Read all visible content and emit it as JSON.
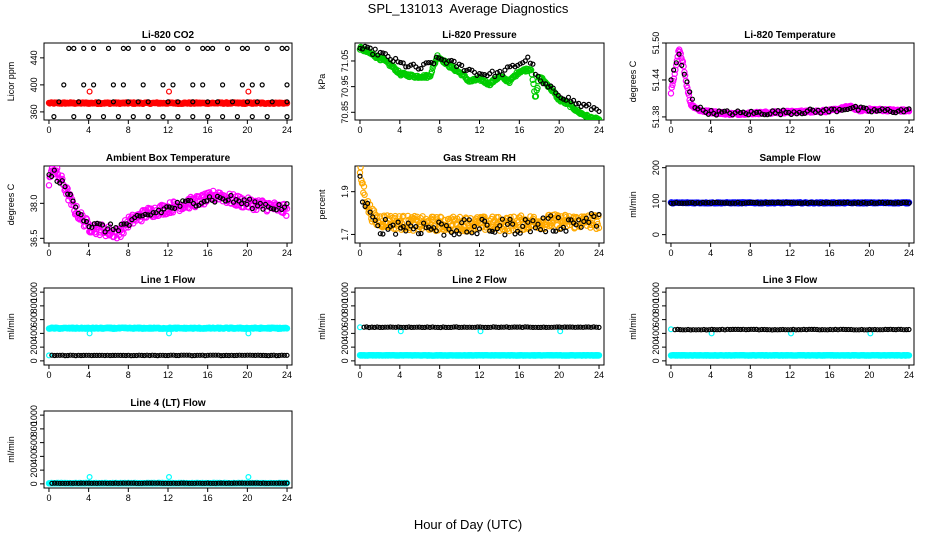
{
  "figure": {
    "title": "SPL_131013  Average Diagnostics",
    "xlabel": "Hour of Day (UTC)"
  },
  "chart_data": [
    {
      "type": "scatter",
      "title": "Li-820 CO2",
      "ylabel": "Licor ppm",
      "xlim": [
        -0.5,
        24.5
      ],
      "ylim": [
        348,
        462
      ],
      "xticks": [
        0,
        4,
        8,
        12,
        16,
        20,
        24
      ],
      "yticks": [
        360,
        400,
        440
      ],
      "ytick_labels": [
        "360",
        "400",
        "440"
      ],
      "series": [
        {
          "color": "#ff0000",
          "kind": "band",
          "x0": 0,
          "x1": 24,
          "center": 373,
          "amp": 1,
          "noise": 1,
          "n": 290,
          "size": 2.6
        },
        {
          "color": "#ff0000",
          "kind": "points",
          "x": [
            4.1,
            12.1,
            20.1
          ],
          "y": [
            390,
            390,
            390
          ],
          "size": 2.4
        },
        {
          "color": "#000000",
          "kind": "points",
          "x": [
            2,
            2.5,
            3.5,
            4.5,
            6,
            7.5,
            8,
            9.5,
            10.5,
            12,
            12.5,
            14,
            15.5,
            16,
            16.5,
            18,
            19.5,
            20,
            22,
            23.5,
            24
          ],
          "y": [
            454,
            454,
            454,
            454,
            454,
            454,
            454,
            454,
            454,
            454,
            454,
            454,
            454,
            454,
            454,
            454,
            454,
            454,
            454,
            454,
            454
          ],
          "size": 2
        },
        {
          "color": "#000000",
          "kind": "points",
          "x": [
            1.5,
            3.5,
            4.5,
            6.5,
            7.5,
            9.5,
            11.5,
            12.5,
            14.5,
            15.5,
            17.5,
            19.5,
            20.5,
            21.5,
            24
          ],
          "y": [
            400,
            400,
            400,
            400,
            400,
            400,
            400,
            400,
            400,
            400,
            400,
            400,
            400,
            400,
            400
          ],
          "size": 2
        },
        {
          "color": "#000000",
          "kind": "points",
          "x": [
            1,
            3,
            5,
            6.5,
            8,
            9,
            10,
            12,
            13,
            14.5,
            16,
            17,
            18.5,
            20,
            21,
            22.5,
            24
          ],
          "y": [
            375,
            375,
            375,
            375,
            375,
            375,
            375,
            375,
            375,
            375,
            375,
            375,
            375,
            375,
            375,
            375,
            375
          ],
          "size": 2
        },
        {
          "color": "#000000",
          "kind": "points",
          "x": [
            0.5,
            2.5,
            4,
            5.5,
            7,
            8.5,
            10,
            11.5,
            13,
            14.5,
            16,
            17.5,
            19,
            20.5,
            22,
            24
          ],
          "y": [
            353,
            353,
            353,
            353,
            353,
            353,
            353,
            353,
            353,
            353,
            353,
            353,
            353,
            353,
            353,
            353
          ],
          "size": 2
        }
      ]
    },
    {
      "type": "scatter",
      "title": "Li-820 Pressure",
      "ylabel": "kPa",
      "xlim": [
        -0.5,
        24.5
      ],
      "ylim": [
        70.82,
        71.12
      ],
      "xticks": [
        0,
        4,
        8,
        12,
        16,
        20,
        24
      ],
      "yticks": [
        70.85,
        70.95,
        71.05
      ],
      "ytick_labels": [
        "70.85",
        "70.95",
        "71.05"
      ],
      "series": [
        {
          "color": "#00cc00",
          "kind": "profile",
          "size": 2.6,
          "noise": 0.006,
          "n": 300,
          "x": [
            0,
            1.5,
            2.5,
            3.5,
            4,
            5.5,
            7,
            7.8,
            9,
            10.2,
            11,
            12,
            13,
            14,
            15,
            16,
            17.2,
            17.6,
            18,
            19,
            20,
            21,
            22,
            23,
            24
          ],
          "y": [
            71.1,
            71.07,
            71.05,
            71.02,
            71.0,
            70.99,
            70.99,
            71.07,
            71.03,
            71.0,
            70.97,
            70.98,
            70.96,
            70.99,
            70.97,
            71.01,
            71.02,
            70.9,
            70.99,
            70.95,
            70.9,
            70.88,
            70.85,
            70.83,
            70.82
          ]
        },
        {
          "color": "#000000",
          "kind": "profile",
          "size": 2,
          "noise": 0.012,
          "n": 95,
          "x": [
            0,
            2,
            4,
            6,
            8,
            10,
            12,
            14,
            16,
            17,
            18,
            20,
            22,
            24
          ],
          "y": [
            71.1,
            71.08,
            71.04,
            71.02,
            71.06,
            71.03,
            71.0,
            71.0,
            71.04,
            71.06,
            70.97,
            70.92,
            70.88,
            70.86
          ]
        }
      ]
    },
    {
      "type": "scatter",
      "title": "Li-820 Temperature",
      "ylabel": "degrees C",
      "xlim": [
        -0.5,
        24.5
      ],
      "ylim": [
        51.375,
        51.5
      ],
      "xticks": [
        0,
        4,
        8,
        12,
        16,
        20,
        24
      ],
      "yticks": [
        51.38,
        51.44,
        51.5
      ],
      "ytick_labels": [
        "51.38",
        "51.44",
        "51.50"
      ],
      "series": [
        {
          "color": "#ff00ff",
          "kind": "profile",
          "size": 2.6,
          "noise": 0.002,
          "n": 320,
          "x": [
            0,
            0.4,
            0.8,
            1.2,
            1.6,
            2,
            3,
            4,
            6,
            8,
            10,
            12,
            14,
            16,
            17,
            18,
            19,
            20,
            22,
            24
          ],
          "y": [
            51.42,
            51.45,
            51.49,
            51.47,
            51.43,
            51.4,
            51.39,
            51.388,
            51.385,
            51.386,
            51.387,
            51.388,
            51.389,
            51.39,
            51.393,
            51.397,
            51.391,
            51.392,
            51.391,
            51.39
          ]
        },
        {
          "color": "#000000",
          "kind": "profile",
          "size": 2,
          "noise": 0.004,
          "n": 90,
          "x": [
            0,
            0.8,
            1.5,
            2.5,
            4,
            8,
            12,
            16,
            18,
            20,
            24
          ],
          "y": [
            51.44,
            51.48,
            51.44,
            51.395,
            51.387,
            51.386,
            51.388,
            51.39,
            51.395,
            51.39,
            51.39
          ]
        }
      ]
    },
    {
      "type": "scatter",
      "title": "Ambient Box Temperature",
      "ylabel": "degrees C",
      "xlim": [
        -0.5,
        24.5
      ],
      "ylim": [
        36.3,
        39.6
      ],
      "xticks": [
        0,
        4,
        8,
        12,
        16,
        20,
        24
      ],
      "yticks": [
        36.5,
        38.0
      ],
      "ytick_labels": [
        "36.5",
        "38.0"
      ],
      "series": [
        {
          "color": "#ff00ff",
          "kind": "profile",
          "size": 2.6,
          "noise": 0.25,
          "n": 320,
          "x": [
            0,
            0.5,
            1.5,
            2.5,
            4,
            5,
            6,
            7,
            8,
            9,
            10,
            12,
            14,
            16,
            17,
            18,
            20,
            22,
            24
          ],
          "y": [
            39.0,
            39.5,
            38.8,
            37.8,
            37.0,
            36.9,
            36.8,
            36.7,
            37.2,
            37.4,
            37.6,
            37.8,
            38.0,
            38.2,
            38.4,
            38.2,
            38.0,
            37.9,
            37.7
          ]
        },
        {
          "color": "#000000",
          "kind": "profile",
          "size": 2,
          "noise": 0.2,
          "n": 90,
          "x": [
            0,
            0.5,
            1.5,
            4,
            6,
            8,
            10,
            12,
            14,
            16,
            18,
            20,
            22,
            24
          ],
          "y": [
            39.1,
            39.3,
            38.7,
            37.1,
            36.9,
            37.1,
            37.5,
            37.8,
            38.0,
            38.2,
            38.2,
            38.0,
            37.9,
            37.8
          ]
        }
      ]
    },
    {
      "type": "scatter",
      "title": "Gas Stream RH",
      "ylabel": "percent",
      "xlim": [
        -0.5,
        24.5
      ],
      "ylim": [
        1.66,
        2.02
      ],
      "xticks": [
        0,
        4,
        8,
        12,
        16,
        20,
        24
      ],
      "yticks": [
        1.7,
        1.9
      ],
      "ytick_labels": [
        "1.7",
        "1.9"
      ],
      "series": [
        {
          "color": "#ffaa00",
          "kind": "profile",
          "size": 2.6,
          "noise": 0.035,
          "n": 360,
          "x": [
            0,
            0.3,
            0.8,
            1.5,
            3,
            6,
            9,
            12,
            15,
            18,
            21,
            24
          ],
          "y": [
            2.0,
            1.92,
            1.83,
            1.77,
            1.76,
            1.75,
            1.75,
            1.75,
            1.75,
            1.76,
            1.76,
            1.76
          ]
        },
        {
          "color": "#000000",
          "kind": "profile",
          "size": 2,
          "noise": 0.04,
          "n": 95,
          "x": [
            0,
            0.3,
            1.5,
            4,
            8,
            12,
            16,
            20,
            24
          ],
          "y": [
            1.95,
            1.85,
            1.74,
            1.74,
            1.73,
            1.73,
            1.74,
            1.75,
            1.77
          ]
        }
      ]
    },
    {
      "type": "scatter",
      "title": "Sample Flow",
      "ylabel": "ml/min",
      "xlim": [
        -0.5,
        24.5
      ],
      "ylim": [
        -25,
        205
      ],
      "xticks": [
        0,
        4,
        8,
        12,
        16,
        20,
        24
      ],
      "yticks": [
        0,
        100,
        200
      ],
      "ytick_labels": [
        "0",
        "100",
        "200"
      ],
      "series": [
        {
          "color": "#0000ff",
          "kind": "band",
          "x0": 0,
          "x1": 24,
          "center": 95,
          "amp": 0,
          "noise": 1.5,
          "n": 300,
          "size": 2.6
        },
        {
          "color": "#000000",
          "kind": "band",
          "x0": 0,
          "x1": 24,
          "center": 95,
          "amp": 0,
          "noise": 1.5,
          "n": 90,
          "size": 2
        }
      ]
    },
    {
      "type": "scatter",
      "title": "Line 1 Flow",
      "ylabel": "ml/min",
      "xlim": [
        -0.5,
        24.5
      ],
      "ylim": [
        -60,
        1060
      ],
      "xticks": [
        0,
        4,
        8,
        12,
        16,
        20,
        24
      ],
      "yticks": [
        0,
        200,
        400,
        600,
        800,
        1000
      ],
      "ytick_labels": [
        "0",
        "200",
        "400",
        "600",
        "800",
        "1000"
      ],
      "series": [
        {
          "color": "#00ffff",
          "kind": "band",
          "x0": 0,
          "x1": 24,
          "center": 475,
          "amp": 0,
          "noise": 8,
          "n": 300,
          "size": 2.6
        },
        {
          "color": "#00ffff",
          "kind": "points",
          "x": [
            0,
            4.1,
            12.1,
            20.1
          ],
          "y": [
            80,
            400,
            400,
            400
          ],
          "size": 2.4
        },
        {
          "color": "#000000",
          "kind": "band",
          "x0": 0.3,
          "x1": 24,
          "center": 80,
          "amp": 0,
          "noise": 3,
          "n": 90,
          "size": 2
        }
      ]
    },
    {
      "type": "scatter",
      "title": "Line 2 Flow",
      "ylabel": "ml/min",
      "xlim": [
        -0.5,
        24.5
      ],
      "ylim": [
        -60,
        1060
      ],
      "xticks": [
        0,
        4,
        8,
        12,
        16,
        20,
        24
      ],
      "yticks": [
        0,
        200,
        400,
        600,
        800,
        1000
      ],
      "ytick_labels": [
        "0",
        "200",
        "400",
        "600",
        "800",
        "1000"
      ],
      "series": [
        {
          "color": "#00ffff",
          "kind": "band",
          "x0": 0,
          "x1": 24,
          "center": 80,
          "amp": 0,
          "noise": 3,
          "n": 300,
          "size": 2.6
        },
        {
          "color": "#00ffff",
          "kind": "points",
          "x": [
            0,
            4.1,
            12.1,
            20.1
          ],
          "y": [
            490,
            430,
            430,
            430
          ],
          "size": 2.4
        },
        {
          "color": "#000000",
          "kind": "band",
          "x0": 0.4,
          "x1": 24,
          "center": 490,
          "amp": 0,
          "noise": 4,
          "n": 90,
          "size": 2
        }
      ]
    },
    {
      "type": "scatter",
      "title": "Line 3 Flow",
      "ylabel": "ml/min",
      "xlim": [
        -0.5,
        24.5
      ],
      "ylim": [
        -60,
        1060
      ],
      "xticks": [
        0,
        4,
        8,
        12,
        16,
        20,
        24
      ],
      "yticks": [
        0,
        200,
        400,
        600,
        800,
        1000
      ],
      "ytick_labels": [
        "0",
        "200",
        "400",
        "600",
        "800",
        "1000"
      ],
      "series": [
        {
          "color": "#00ffff",
          "kind": "band",
          "x0": 0,
          "x1": 24,
          "center": 80,
          "amp": 0,
          "noise": 3,
          "n": 300,
          "size": 2.6
        },
        {
          "color": "#00ffff",
          "kind": "points",
          "x": [
            0,
            4.1,
            12.1,
            20.1
          ],
          "y": [
            460,
            400,
            400,
            400
          ],
          "size": 2.4
        },
        {
          "color": "#000000",
          "kind": "band",
          "x0": 0.4,
          "x1": 24,
          "center": 455,
          "amp": 0,
          "noise": 4,
          "n": 90,
          "size": 2
        }
      ]
    },
    {
      "type": "scatter",
      "title": "Line 4 (LT) Flow",
      "ylabel": "ml/min",
      "xlim": [
        -0.5,
        24.5
      ],
      "ylim": [
        -60,
        1060
      ],
      "xticks": [
        0,
        4,
        8,
        12,
        16,
        20,
        24
      ],
      "yticks": [
        0,
        200,
        400,
        600,
        800,
        1000
      ],
      "ytick_labels": [
        "0",
        "200",
        "400",
        "600",
        "800",
        "1000"
      ],
      "series": [
        {
          "color": "#00ffff",
          "kind": "band",
          "x0": 0,
          "x1": 24,
          "center": 10,
          "amp": 0,
          "noise": 3,
          "n": 300,
          "size": 2.6
        },
        {
          "color": "#00ffff",
          "kind": "points",
          "x": [
            4.1,
            12.1,
            20.1
          ],
          "y": [
            100,
            100,
            100
          ],
          "size": 2.4
        },
        {
          "color": "#000000",
          "kind": "band",
          "x0": 0.3,
          "x1": 24,
          "center": 10,
          "amp": 0,
          "noise": 2,
          "n": 90,
          "size": 2
        }
      ]
    }
  ]
}
